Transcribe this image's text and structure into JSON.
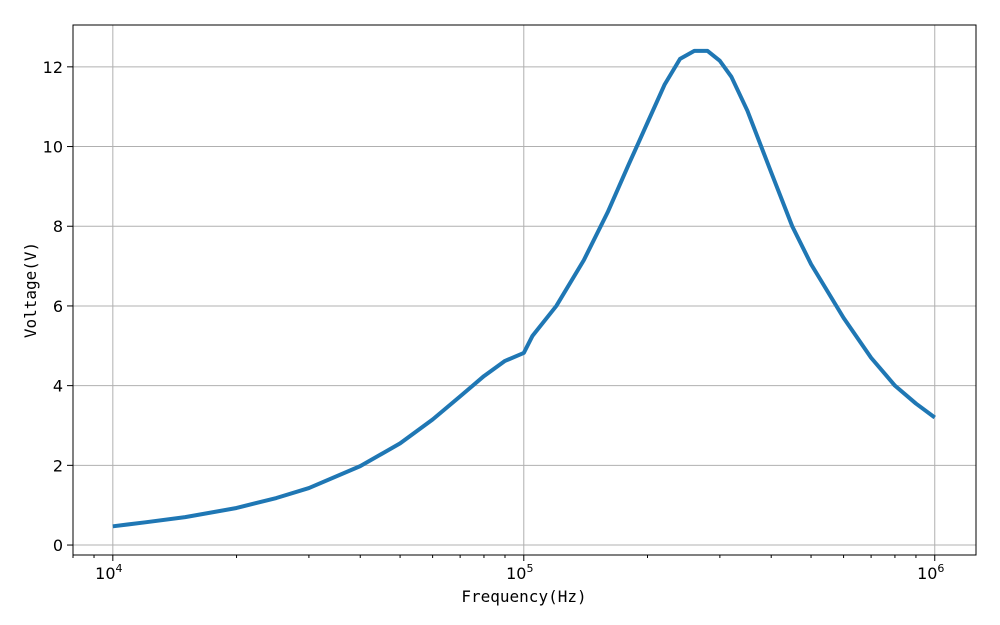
{
  "chart_data": {
    "type": "line",
    "title": "",
    "xlabel": "Frequency(Hz)",
    "ylabel": "Voltage(V)",
    "xscale": "log",
    "xlim": [
      8000,
      1260000
    ],
    "ylim": [
      -0.25,
      13.05
    ],
    "grid": true,
    "x_ticks": [
      {
        "value": 10000,
        "base": "10",
        "exp": "4"
      },
      {
        "value": 100000,
        "base": "10",
        "exp": "5"
      },
      {
        "value": 1000000,
        "base": "10",
        "exp": "6"
      }
    ],
    "y_ticks": [
      0,
      2,
      4,
      6,
      8,
      10,
      12
    ],
    "y_tick_labels": [
      "0",
      "2",
      "4",
      "6",
      "8",
      "10",
      "12"
    ],
    "series": [
      {
        "color": "#1f77b4",
        "x": [
          10000,
          12000,
          15000,
          20000,
          25000,
          30000,
          40000,
          50000,
          60000,
          70000,
          80000,
          90000,
          100000,
          105000,
          120000,
          140000,
          160000,
          180000,
          200000,
          220000,
          240000,
          260000,
          280000,
          300000,
          320000,
          350000,
          400000,
          450000,
          500000,
          600000,
          700000,
          800000,
          900000,
          1000000
        ],
        "y": [
          0.47,
          0.57,
          0.7,
          0.93,
          1.18,
          1.43,
          1.98,
          2.55,
          3.15,
          3.73,
          4.24,
          4.62,
          4.82,
          5.25,
          6.0,
          7.15,
          8.35,
          9.55,
          10.6,
          11.55,
          12.2,
          12.4,
          12.4,
          12.15,
          11.75,
          10.9,
          9.35,
          8.0,
          7.05,
          5.7,
          4.7,
          4.0,
          3.55,
          3.2
        ]
      }
    ]
  }
}
